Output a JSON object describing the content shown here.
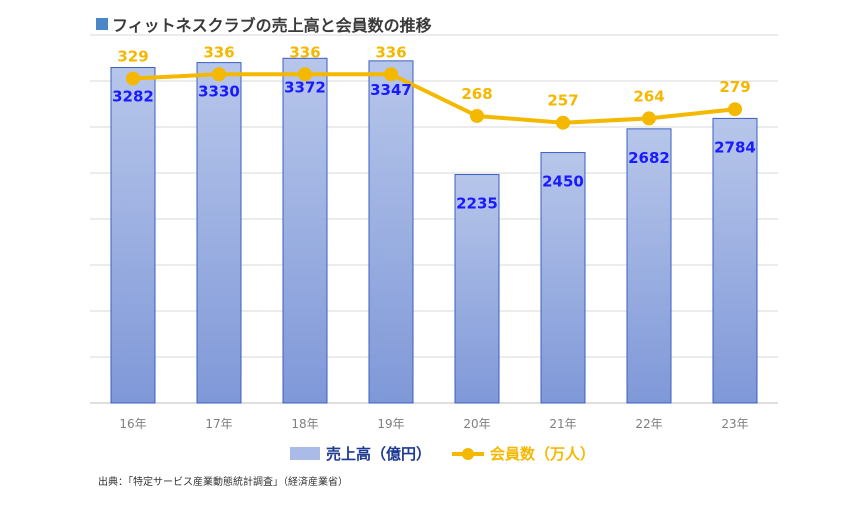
{
  "title": "フィットネスクラブの売上高と会員数の推移",
  "source": "出典：「特定サービス産業動態統計調査」（経済産業省）",
  "chart_data": {
    "type": "bar",
    "categories": [
      "16年",
      "17年",
      "18年",
      "19年",
      "20年",
      "21年",
      "22年",
      "23年"
    ],
    "series": [
      {
        "name": "売上高（億円）",
        "type": "bar",
        "values": [
          3282,
          3330,
          3372,
          3347,
          2235,
          2450,
          2682,
          2784
        ],
        "color": "#8fa6dc",
        "label_color": "#1a1aff"
      },
      {
        "name": "会員数（万人）",
        "type": "line",
        "values": [
          329,
          336,
          336,
          336,
          268,
          257,
          264,
          279
        ],
        "color": "#f5b800",
        "label_color": "#f5b800"
      }
    ],
    "bar_ylim": [
      0,
      3600
    ],
    "line_ylim": [
      -200,
      400
    ],
    "grid": true,
    "legend": "bottom"
  }
}
